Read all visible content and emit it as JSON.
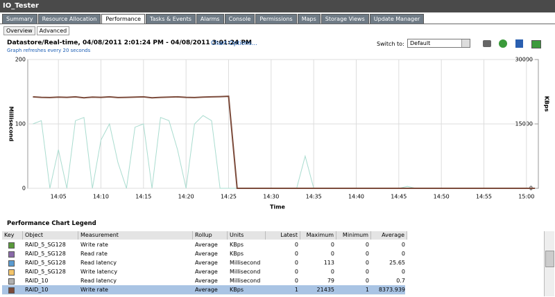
{
  "header": {
    "title": "IO_Tester"
  },
  "tabs": [
    "Summary",
    "Resource Allocation",
    "Performance",
    "Tasks & Events",
    "Alarms",
    "Console",
    "Permissions",
    "Maps",
    "Storage Views",
    "Update Manager"
  ],
  "active_tab": 2,
  "subtabs": [
    "Overview",
    "Advanced"
  ],
  "chart_header": {
    "title": "Datastore/Real-time, 04/08/2011 2:01:24 PM - 04/08/2011 3:01:24 PM",
    "link": "Chart Options...",
    "note": "Graph refreshes every 20 seconds",
    "switch_label": "Switch to:",
    "switch_value": "Default"
  },
  "chart_data": {
    "type": "line",
    "y_label": "Millisecond",
    "y2_label": "KBps",
    "x_label": "Time",
    "x": [
      "14:02",
      "14:03",
      "14:04",
      "14:05",
      "14:06",
      "14:07",
      "14:08",
      "14:09",
      "14:10",
      "14:11",
      "14:12",
      "14:13",
      "14:14",
      "14:15",
      "14:16",
      "14:17",
      "14:18",
      "14:19",
      "14:20",
      "14:21",
      "14:22",
      "14:23",
      "14:24",
      "14:25",
      "14:26",
      "14:27",
      "14:28",
      "14:29",
      "14:30",
      "14:31",
      "14:32",
      "14:33",
      "14:34",
      "14:35",
      "14:36",
      "14:37",
      "14:38",
      "14:39",
      "14:40",
      "14:41",
      "14:42",
      "14:43",
      "14:44",
      "14:45",
      "14:46",
      "14:47",
      "14:48",
      "14:49",
      "14:50",
      "14:51",
      "14:52",
      "14:53",
      "14:54",
      "14:55",
      "14:56",
      "14:57",
      "14:58",
      "14:59",
      "15:00",
      "15:01"
    ],
    "xlim": [
      "14:01:24",
      "15:01:24"
    ],
    "xticks": [
      "14:05",
      "14:10",
      "14:15",
      "14:20",
      "14:25",
      "14:30",
      "14:35",
      "14:40",
      "14:45",
      "14:50",
      "14:55",
      "15:00"
    ],
    "ylim": [
      0,
      200
    ],
    "yticks": [
      0,
      100,
      200
    ],
    "y2lim": [
      0,
      30000
    ],
    "y2ticks": [
      0,
      15000,
      30000
    ],
    "grid": true,
    "series": [
      {
        "color": "#a9dccf",
        "values": [
          100,
          105,
          0,
          60,
          0,
          105,
          110,
          0,
          75,
          100,
          40,
          0,
          95,
          100,
          0,
          110,
          105,
          60,
          0,
          100,
          113,
          105,
          0,
          0,
          0,
          0,
          0,
          0,
          0,
          0,
          0,
          0,
          50,
          0,
          0,
          0,
          0,
          0,
          0,
          0,
          0,
          0,
          0,
          0,
          3,
          0,
          0,
          0,
          0,
          0,
          0,
          0,
          0,
          0,
          0,
          0,
          0,
          0,
          0,
          0
        ]
      },
      {
        "color": "#7b4a3a",
        "axis": "y2",
        "values": [
          21300,
          21200,
          21150,
          21250,
          21200,
          21300,
          21100,
          21250,
          21200,
          21300,
          21150,
          21200,
          21250,
          21300,
          21100,
          21200,
          21250,
          21300,
          21200,
          21150,
          21250,
          21300,
          21350,
          21435,
          0,
          0,
          0,
          0,
          0,
          0,
          0,
          0,
          0,
          0,
          0,
          0,
          0,
          0,
          0,
          0,
          0,
          0,
          0,
          0,
          0,
          0,
          0,
          0,
          0,
          0,
          0,
          0,
          0,
          0,
          0,
          0,
          0,
          0,
          0,
          0
        ]
      }
    ]
  },
  "legend_table": {
    "title": "Performance Chart Legend",
    "columns": [
      "Key",
      "Object",
      "Measurement",
      "Rollup",
      "Units",
      "Latest",
      "Maximum",
      "Minimum",
      "Average"
    ],
    "selected_row": 5,
    "rows": [
      {
        "color": "#5a9a3c",
        "object": "RAID_5_SG128",
        "measurement": "Write rate",
        "rollup": "Average",
        "units": "KBps",
        "latest": 0,
        "maximum": 0,
        "minimum": 0,
        "average": 0
      },
      {
        "color": "#8a6aa8",
        "object": "RAID_5_SG128",
        "measurement": "Read rate",
        "rollup": "Average",
        "units": "KBps",
        "latest": 0,
        "maximum": 0,
        "minimum": 0,
        "average": 0
      },
      {
        "color": "#5b9bd0",
        "object": "RAID_5_SG128",
        "measurement": "Read latency",
        "rollup": "Average",
        "units": "Millisecond",
        "latest": 0,
        "maximum": 113,
        "minimum": 0,
        "average": 25.65
      },
      {
        "color": "#f3c46a",
        "object": "RAID_5_SG128",
        "measurement": "Write latency",
        "rollup": "Average",
        "units": "Millisecond",
        "latest": 0,
        "maximum": 0,
        "minimum": 0,
        "average": 0
      },
      {
        "color": "#b0b0b0",
        "object": "RAID_10",
        "measurement": "Read latency",
        "rollup": "Average",
        "units": "Millisecond",
        "latest": 0,
        "maximum": 79,
        "minimum": 0,
        "average": 0.7
      },
      {
        "color": "#7b4a3a",
        "object": "RAID_10",
        "measurement": "Write rate",
        "rollup": "Average",
        "units": "KBps",
        "latest": 1,
        "maximum": 21435,
        "minimum": 1,
        "average": 8373.939
      }
    ]
  }
}
